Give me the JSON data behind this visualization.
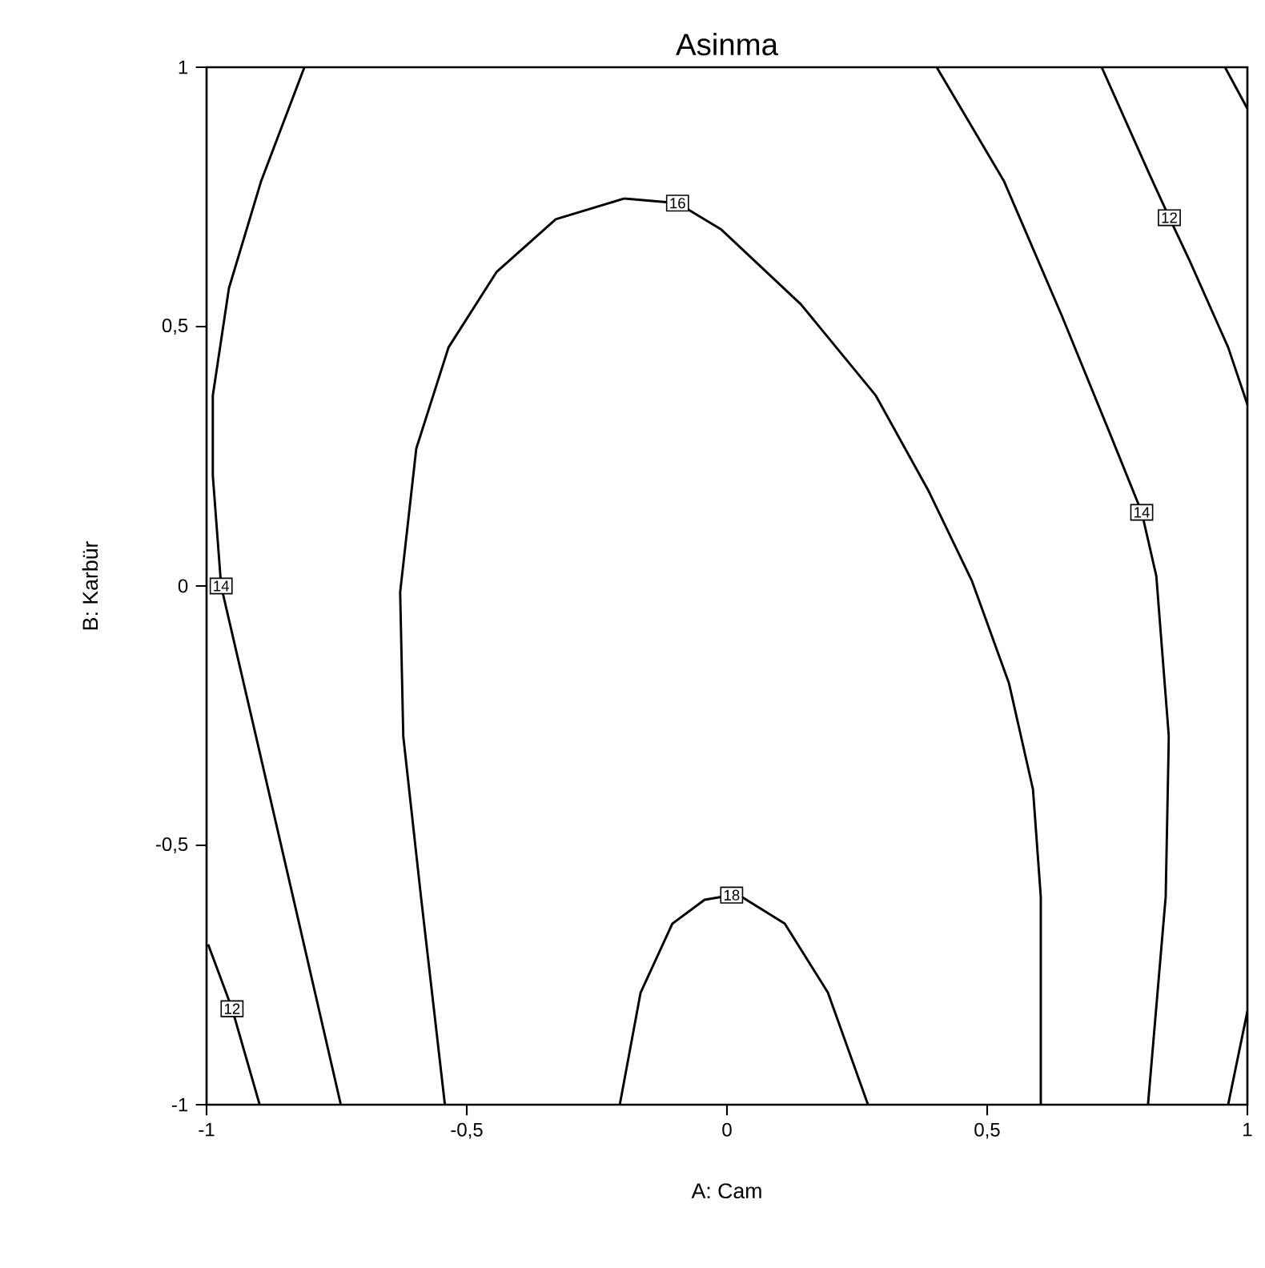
{
  "chart_data": {
    "type": "line",
    "title": "Asinma",
    "xlabel": "A: Cam",
    "ylabel": "B: Karbür",
    "xlim": [
      -1,
      1
    ],
    "ylim": [
      -1,
      1
    ],
    "xticks": [
      -1,
      {
        "value": -0.5,
        "label": "-0,5"
      },
      0,
      {
        "value": 0.5,
        "label": "0,5"
      },
      1
    ],
    "yticks": [
      -1,
      {
        "value": -0.5,
        "label": "-0,5"
      },
      0,
      {
        "value": 0.5,
        "label": "0,5"
      },
      1
    ],
    "series": [
      {
        "name": "14",
        "color": "#000000",
        "x": [
          -0.812,
          -0.895,
          -0.957,
          -0.988,
          -0.988,
          -0.972,
          -0.905,
          -0.834,
          -0.742
        ],
        "values": [
          1,
          0.781,
          0.574,
          0.367,
          0.213,
          0.0,
          -0.29,
          -0.599,
          -1
        ]
      },
      {
        "name": "12",
        "color": "#000000",
        "x": [
          -0.997,
          -0.951,
          -0.898
        ],
        "values": [
          -0.691,
          -0.815,
          -1
        ]
      },
      {
        "name": "16",
        "color": "#000000",
        "x": [
          -0.542,
          -0.588,
          -0.622,
          -0.628,
          -0.597,
          -0.535,
          -0.443,
          -0.329,
          -0.197,
          -0.095,
          -0.012,
          0.142,
          0.286,
          0.388,
          0.471,
          0.542,
          0.588,
          0.603,
          0.603
        ],
        "values": [
          -1,
          -0.599,
          -0.29,
          -0.012,
          0.265,
          0.46,
          0.605,
          0.707,
          0.747,
          0.738,
          0.688,
          0.543,
          0.367,
          0.182,
          0.009,
          -0.188,
          -0.392,
          -0.599,
          -1
        ]
      },
      {
        "name": "14",
        "color": "#000000",
        "x": [
          0.403,
          0.532,
          0.643,
          0.735,
          0.797,
          0.825,
          0.849,
          0.843,
          0.809
        ],
        "values": [
          1,
          0.781,
          0.522,
          0.296,
          0.142,
          0.019,
          -0.29,
          -0.599,
          -1
        ]
      },
      {
        "name": "12",
        "color": "#000000",
        "x": [
          0.72,
          0.809,
          0.85,
          0.889,
          0.963,
          1
        ],
        "values": [
          1,
          0.8,
          0.71,
          0.627,
          0.46,
          0.35
        ]
      },
      {
        "name": "18",
        "color": "#000000",
        "x": [
          -0.206,
          -0.166,
          -0.105,
          -0.043,
          0.009,
          0.028,
          0.111,
          0.194,
          0.271
        ],
        "values": [
          -1,
          -0.784,
          -0.651,
          -0.605,
          -0.596,
          -0.599,
          -0.651,
          -0.784,
          -1
        ]
      },
      {
        "color": "#000000",
        "x": [
          0.957,
          1
        ],
        "values": [
          1,
          0.92
        ]
      },
      {
        "color": "#000000",
        "x": [
          1,
          0.963
        ],
        "values": [
          -0.82,
          -1
        ]
      }
    ]
  }
}
